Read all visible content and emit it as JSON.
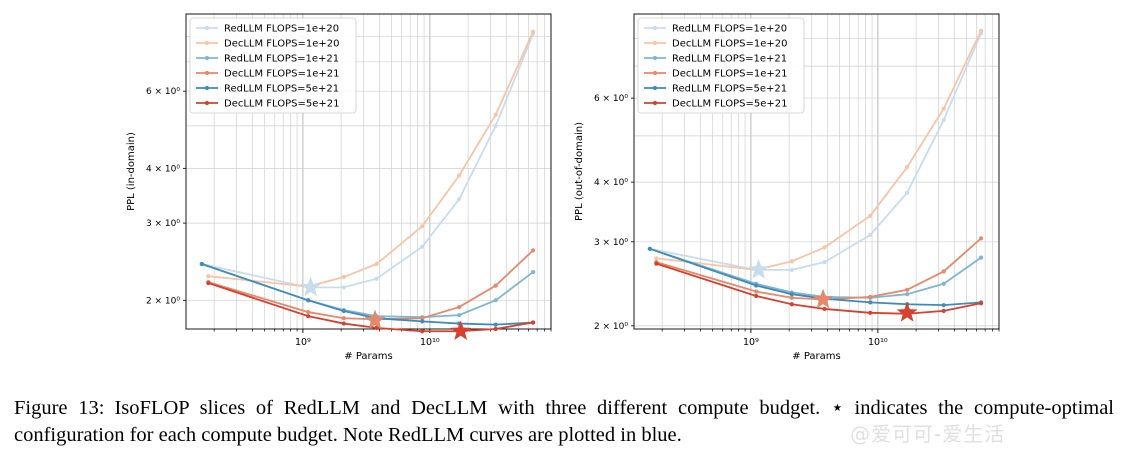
{
  "figure": {
    "label": "Figure 13:",
    "caption": "IsoFLOP slices of RedLLM and DecLLM with three different compute budget. ⋆ indicates the compute-optimal configuration for each compute budget. Note RedLLM curves are plotted in blue.",
    "watermark": "@爱可可-爱生活"
  },
  "colors": {
    "red_1e20": "#f6c4a6",
    "red_1e21": "#e6886b",
    "red_5e21": "#d4412f",
    "blue_1e20": "#c8dced",
    "blue_1e21": "#80b6d2",
    "blue_5e21": "#3e8cb9"
  },
  "chart_data": [
    {
      "type": "line",
      "xlabel": "# Params",
      "ylabel": "PPL (in-domain)",
      "xscale": "log",
      "yscale": "log",
      "xlim": [
        120000000.0,
        90000000000.0
      ],
      "ylim": [
        1.72,
        9.0
      ],
      "xticks": [
        {
          "value": 1000000000.0,
          "label": "10⁹"
        },
        {
          "value": 10000000000.0,
          "label": "10¹⁰"
        }
      ],
      "yticks": [
        {
          "value": 2,
          "label": "2 × 10⁰"
        },
        {
          "value": 3,
          "label": "3 × 10⁰"
        },
        {
          "value": 4,
          "label": "4 × 10⁰"
        },
        {
          "value": 6,
          "label": "6 × 10⁰"
        }
      ],
      "legend_position": "top-left",
      "series": [
        {
          "name": "RedLLM FLOPS=1e+20",
          "color": "#c8dced",
          "x": [
            160000000.0,
            1100000000.0,
            2100000000.0,
            3800000000.0,
            8700000000.0,
            17000000000.0,
            33000000000.0,
            65000000000.0
          ],
          "y": [
            2.42,
            2.14,
            2.14,
            2.24,
            2.65,
            3.4,
            5.0,
            8.1
          ]
        },
        {
          "name": "DecLLM FLOPS=1e+20",
          "color": "#f6c4a6",
          "x": [
            180000000.0,
            1100000000.0,
            2100000000.0,
            3800000000.0,
            8700000000.0,
            17000000000.0,
            33000000000.0,
            65000000000.0
          ],
          "y": [
            2.27,
            2.15,
            2.26,
            2.42,
            2.95,
            3.85,
            5.3,
            8.2
          ]
        },
        {
          "name": "RedLLM FLOPS=1e+21",
          "color": "#80b6d2",
          "x": [
            160000000.0,
            1100000000.0,
            2100000000.0,
            3800000000.0,
            8700000000.0,
            17000000000.0,
            33000000000.0,
            65000000000.0
          ],
          "y": [
            2.42,
            2.0,
            1.9,
            1.84,
            1.83,
            1.85,
            2.0,
            2.32
          ]
        },
        {
          "name": "DecLLM FLOPS=1e+21",
          "color": "#e6886b",
          "x": [
            180000000.0,
            1100000000.0,
            2100000000.0,
            3800000000.0,
            8700000000.0,
            17000000000.0,
            33000000000.0,
            65000000000.0
          ],
          "y": [
            2.2,
            1.88,
            1.82,
            1.81,
            1.82,
            1.93,
            2.16,
            2.6
          ]
        },
        {
          "name": "RedLLM FLOPS=5e+21",
          "color": "#3e8cb9",
          "x": [
            160000000.0,
            1100000000.0,
            2100000000.0,
            3800000000.0,
            8700000000.0,
            17000000000.0,
            33000000000.0,
            65000000000.0
          ],
          "y": [
            2.42,
            2.0,
            1.89,
            1.82,
            1.79,
            1.77,
            1.76,
            1.78
          ]
        },
        {
          "name": "DecLLM FLOPS=5e+21",
          "color": "#d4412f",
          "x": [
            180000000.0,
            1100000000.0,
            2100000000.0,
            3800000000.0,
            8700000000.0,
            17000000000.0,
            33000000000.0,
            65000000000.0
          ],
          "y": [
            2.19,
            1.84,
            1.77,
            1.73,
            1.7,
            1.7,
            1.72,
            1.78
          ]
        }
      ],
      "optimal_markers": [
        {
          "x": 1150000000.0,
          "y": 2.14,
          "color": "#c8dced"
        },
        {
          "x": 3700000000.0,
          "y": 1.8,
          "color": "#e6886b"
        },
        {
          "x": 17500000000.0,
          "y": 1.7,
          "color": "#d4412f"
        }
      ]
    },
    {
      "type": "line",
      "xlabel": "# Params",
      "ylabel": "PPL (out-of-domain)",
      "xscale": "log",
      "yscale": "log",
      "xlim": [
        120000000.0,
        90000000000.0
      ],
      "ylim": [
        1.97,
        9.0
      ],
      "xticks": [
        {
          "value": 1000000000.0,
          "label": "10⁹"
        },
        {
          "value": 10000000000.0,
          "label": "10¹⁰"
        }
      ],
      "yticks": [
        {
          "value": 2,
          "label": "2 × 10⁰"
        },
        {
          "value": 3,
          "label": "3 × 10⁰"
        },
        {
          "value": 4,
          "label": "4 × 10⁰"
        },
        {
          "value": 6,
          "label": "6 × 10⁰"
        }
      ],
      "legend_position": "top-left",
      "series": [
        {
          "name": "RedLLM FLOPS=1e+20",
          "color": "#c8dced",
          "x": [
            160000000.0,
            1100000000.0,
            2100000000.0,
            3800000000.0,
            8700000000.0,
            17000000000.0,
            33000000000.0,
            65000000000.0
          ],
          "y": [
            2.9,
            2.62,
            2.62,
            2.72,
            3.1,
            3.8,
            5.4,
            8.2
          ]
        },
        {
          "name": "DecLLM FLOPS=1e+20",
          "color": "#f6c4a6",
          "x": [
            180000000.0,
            1100000000.0,
            2100000000.0,
            3800000000.0,
            8700000000.0,
            17000000000.0,
            33000000000.0,
            65000000000.0
          ],
          "y": [
            2.77,
            2.62,
            2.73,
            2.92,
            3.4,
            4.3,
            5.7,
            8.3
          ]
        },
        {
          "name": "RedLLM FLOPS=1e+21",
          "color": "#80b6d2",
          "x": [
            160000000.0,
            1100000000.0,
            2100000000.0,
            3800000000.0,
            8700000000.0,
            17000000000.0,
            33000000000.0,
            65000000000.0
          ],
          "y": [
            2.9,
            2.45,
            2.35,
            2.3,
            2.29,
            2.33,
            2.45,
            2.78
          ]
        },
        {
          "name": "DecLLM FLOPS=1e+21",
          "color": "#e6886b",
          "x": [
            180000000.0,
            1100000000.0,
            2100000000.0,
            3800000000.0,
            8700000000.0,
            17000000000.0,
            33000000000.0,
            65000000000.0
          ],
          "y": [
            2.72,
            2.36,
            2.29,
            2.27,
            2.3,
            2.38,
            2.6,
            3.05
          ]
        },
        {
          "name": "RedLLM FLOPS=5e+21",
          "color": "#3e8cb9",
          "x": [
            160000000.0,
            1100000000.0,
            2100000000.0,
            3800000000.0,
            8700000000.0,
            17000000000.0,
            33000000000.0,
            65000000000.0
          ],
          "y": [
            2.9,
            2.43,
            2.33,
            2.28,
            2.24,
            2.22,
            2.21,
            2.24
          ]
        },
        {
          "name": "DecLLM FLOPS=5e+21",
          "color": "#d4412f",
          "x": [
            180000000.0,
            1100000000.0,
            2100000000.0,
            3800000000.0,
            8700000000.0,
            17000000000.0,
            33000000000.0,
            65000000000.0
          ],
          "y": [
            2.7,
            2.31,
            2.22,
            2.17,
            2.13,
            2.12,
            2.15,
            2.23
          ]
        }
      ],
      "optimal_markers": [
        {
          "x": 1150000000.0,
          "y": 2.62,
          "color": "#c8dced"
        },
        {
          "x": 3700000000.0,
          "y": 2.27,
          "color": "#e6886b"
        },
        {
          "x": 17000000000.0,
          "y": 2.13,
          "color": "#d4412f"
        }
      ]
    }
  ]
}
